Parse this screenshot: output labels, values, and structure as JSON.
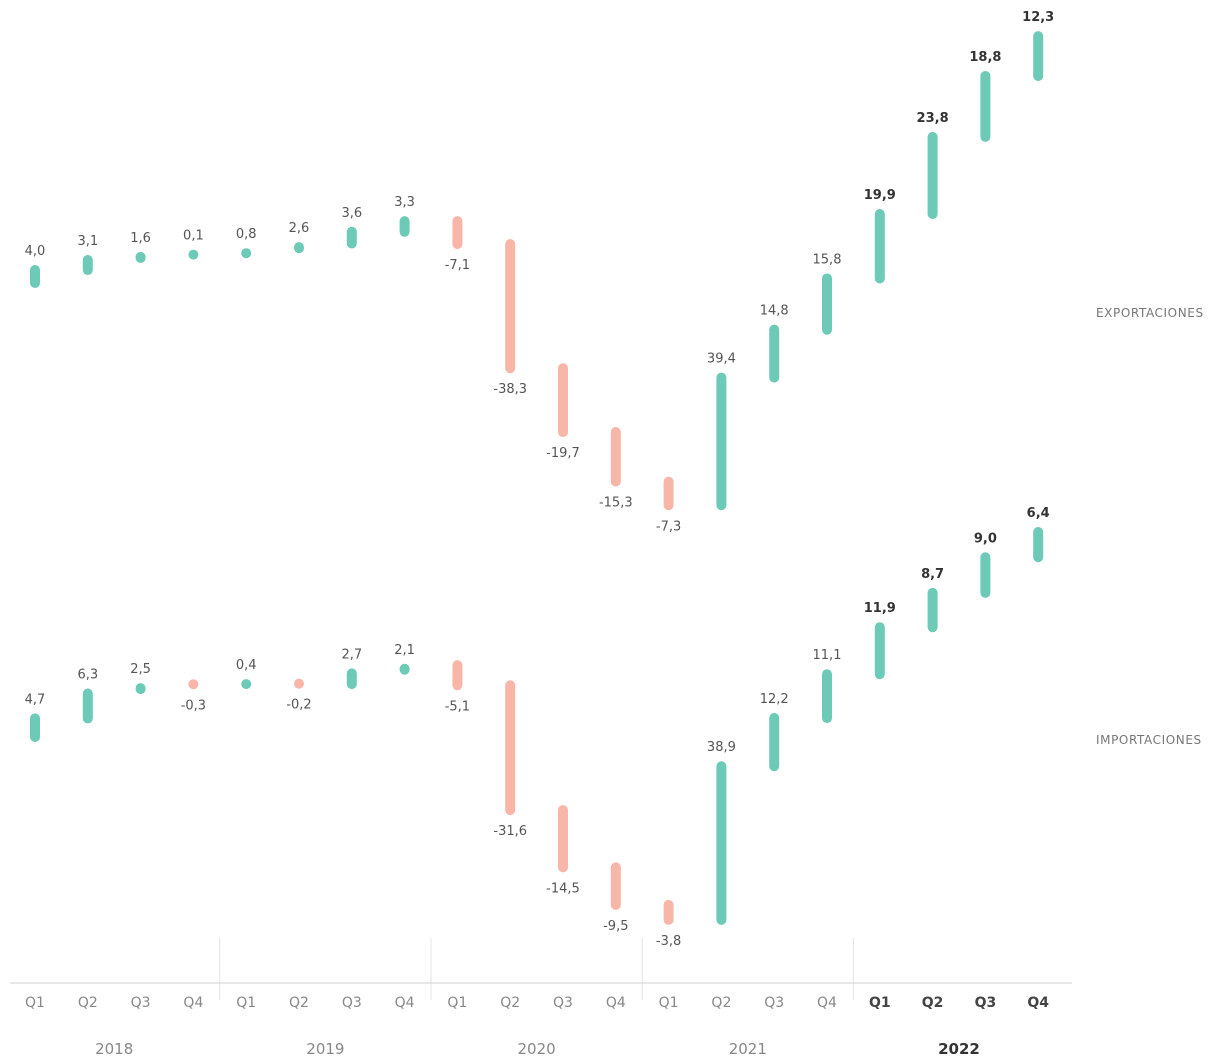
{
  "chart_data": {
    "type": "range",
    "colors": {
      "positive": "#6ccab6",
      "negative": "#f7b6a8"
    },
    "categories": [
      "Q1",
      "Q2",
      "Q3",
      "Q4",
      "Q1",
      "Q2",
      "Q3",
      "Q4",
      "Q1",
      "Q2",
      "Q3",
      "Q4",
      "Q1",
      "Q2",
      "Q3",
      "Q4",
      "Q1",
      "Q2",
      "Q3",
      "Q4"
    ],
    "years": [
      "2018",
      "2019",
      "2020",
      "2021",
      "2022"
    ],
    "highlight_year": "2022",
    "series": [
      {
        "name": "EXPORTACIONES",
        "values": [
          4.0,
          3.1,
          1.6,
          0.1,
          0.8,
          2.6,
          3.6,
          3.3,
          -7.1,
          -38.3,
          -19.7,
          -15.3,
          -7.3,
          39.4,
          14.8,
          15.8,
          19.9,
          23.8,
          18.8,
          12.3
        ],
        "labels": [
          "4,0",
          "3,1",
          "1,6",
          "0,1",
          "0,8",
          "2,6",
          "3,6",
          "3,3",
          "-7,1",
          "-38,3",
          "-19,7",
          "-15,3",
          "-7,3",
          "39,4",
          "14,8",
          "15,8",
          "19,9",
          "23,8",
          "18,8",
          "12,3"
        ]
      },
      {
        "name": "IMPORTACIONES",
        "values": [
          4.7,
          6.3,
          2.5,
          -0.3,
          0.4,
          -0.2,
          2.7,
          2.1,
          -5.1,
          -31.6,
          -14.5,
          -9.5,
          -3.8,
          38.9,
          12.2,
          11.1,
          11.9,
          8.7,
          9.0,
          6.4
        ],
        "labels": [
          "4,7",
          "6,3",
          "2,5",
          "-0,3",
          "0,4",
          "-0,2",
          "2,7",
          "2,1",
          "-5,1",
          "-31,6",
          "-14,5",
          "-9,5",
          "-3,8",
          "38,9",
          "12,2",
          "11,1",
          "11,9",
          "8,7",
          "9,0",
          "6,4"
        ]
      }
    ]
  }
}
